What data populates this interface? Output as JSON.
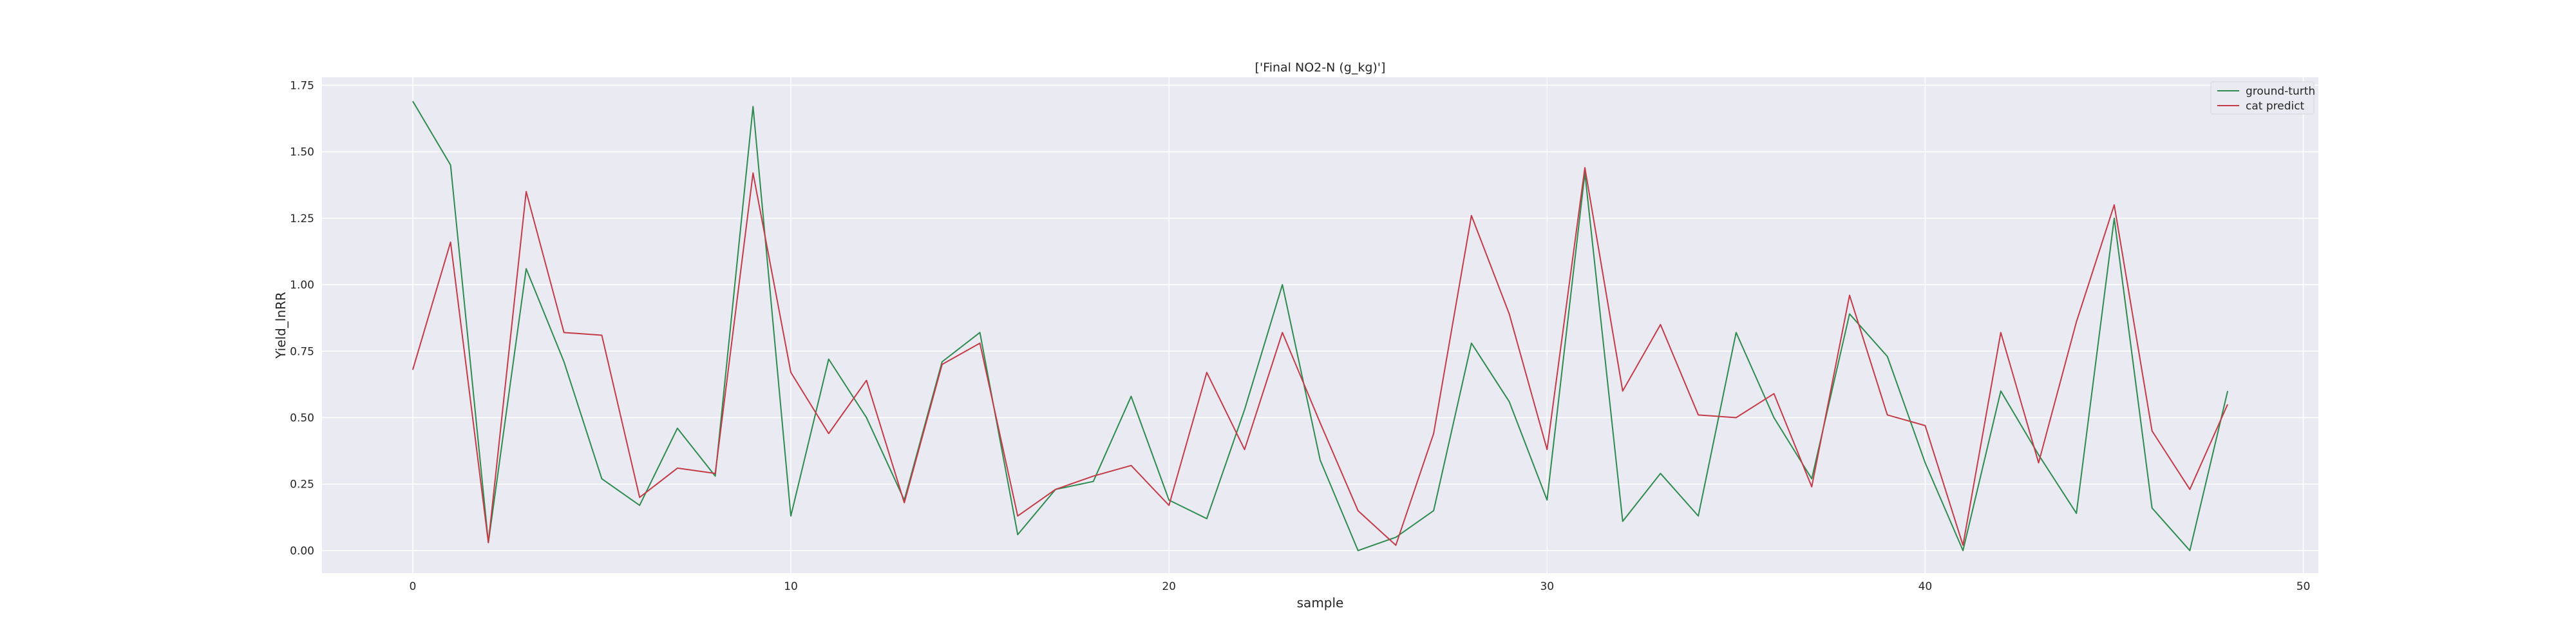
{
  "chart_data": {
    "type": "line",
    "title": "['Final NO2-N (g_kg)']",
    "xlabel": "sample",
    "ylabel": "Yield_lnRR",
    "xlim": [
      -2.4,
      50.4
    ],
    "ylim": [
      -0.085,
      1.78
    ],
    "xticks": [
      0,
      10,
      20,
      30,
      40,
      50
    ],
    "yticks": [
      0.0,
      0.25,
      0.5,
      0.75,
      1.0,
      1.25,
      1.5,
      1.75
    ],
    "ytick_labels": [
      "0.00",
      "0.25",
      "0.50",
      "0.75",
      "1.00",
      "1.25",
      "1.50",
      "1.75"
    ],
    "grid": true,
    "legend_position": "top-right",
    "x": [
      0,
      1,
      2,
      3,
      4,
      5,
      6,
      7,
      8,
      9,
      10,
      11,
      12,
      13,
      14,
      15,
      16,
      17,
      18,
      19,
      20,
      21,
      22,
      23,
      24,
      25,
      26,
      27,
      28,
      29,
      30,
      31,
      32,
      33,
      34,
      35,
      36,
      37,
      38,
      39,
      40,
      41,
      42,
      43,
      44,
      45,
      46,
      47,
      48
    ],
    "series": [
      {
        "name": "ground-turth",
        "color": "#2e8b4f",
        "values": [
          1.69,
          1.45,
          0.03,
          1.06,
          0.71,
          0.27,
          0.17,
          0.46,
          0.28,
          1.67,
          0.13,
          0.72,
          0.5,
          0.19,
          0.71,
          0.82,
          0.06,
          0.23,
          0.26,
          0.58,
          0.19,
          0.12,
          0.53,
          1.0,
          0.34,
          0.0,
          0.05,
          0.15,
          0.78,
          0.56,
          0.19,
          1.42,
          0.11,
          0.29,
          0.13,
          0.82,
          0.5,
          0.27,
          0.89,
          0.73,
          0.33,
          0.0,
          0.6,
          0.36,
          0.14,
          1.25,
          0.16,
          0.0,
          0.6
        ]
      },
      {
        "name": "cat predict",
        "color": "#c43b48",
        "values": [
          0.68,
          1.16,
          0.03,
          1.35,
          0.82,
          0.81,
          0.2,
          0.31,
          0.29,
          1.42,
          0.67,
          0.44,
          0.64,
          0.18,
          0.7,
          0.78,
          0.13,
          0.23,
          0.28,
          0.32,
          0.17,
          0.67,
          0.38,
          0.82,
          0.48,
          0.15,
          0.02,
          0.44,
          1.26,
          0.89,
          0.38,
          1.44,
          0.6,
          0.85,
          0.51,
          0.5,
          0.59,
          0.24,
          0.96,
          0.51,
          0.47,
          0.02,
          0.82,
          0.33,
          0.86,
          1.3,
          0.45,
          0.23,
          0.55
        ]
      }
    ]
  }
}
